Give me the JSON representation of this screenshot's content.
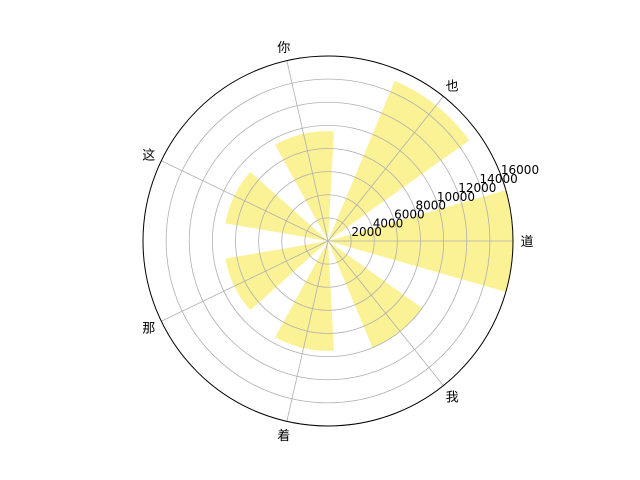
{
  "chart_data": {
    "type": "bar",
    "subtype": "polar",
    "categories": [
      "道",
      "也",
      "你",
      "这",
      "那",
      "着",
      "我"
    ],
    "values": [
      16000,
      15000,
      9500,
      9000,
      9000,
      9500,
      10000
    ],
    "radial_ticks": [
      "2000",
      "4000",
      "6000",
      "8000",
      "10000",
      "12000",
      "14000",
      "16000"
    ],
    "rlim": [
      0,
      16000
    ],
    "grid": true,
    "bar_color": "#fbf08f",
    "grid_color": "#b0b0b0"
  }
}
